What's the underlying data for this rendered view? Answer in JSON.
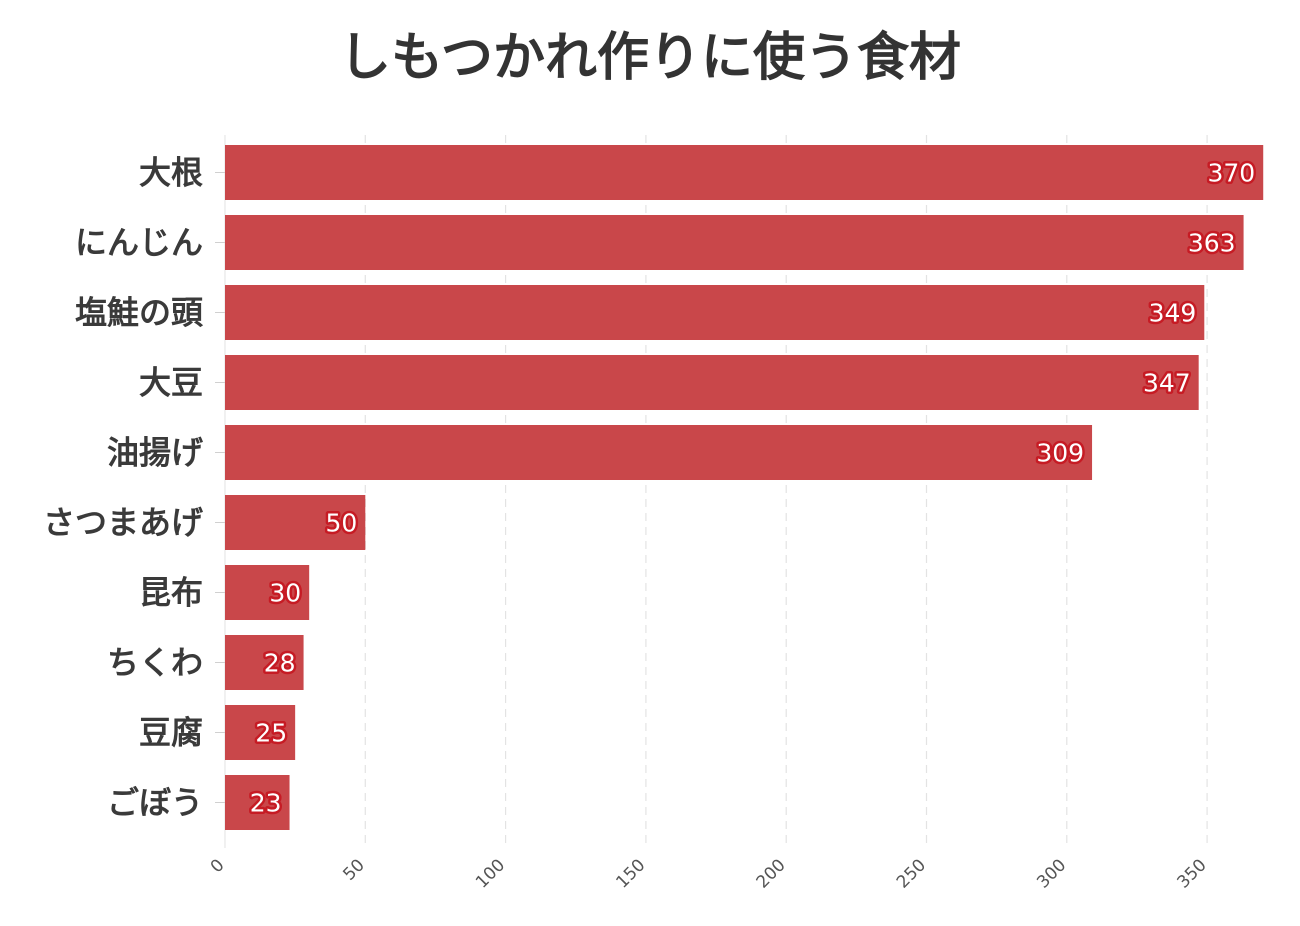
{
  "chart_data": {
    "type": "bar",
    "orientation": "horizontal",
    "title": "しもつかれ作りに使う食材",
    "xlabel": "",
    "ylabel": "",
    "categories": [
      "大根",
      "にんじん",
      "塩鮭の頭",
      "大豆",
      "油揚げ",
      "さつまあげ",
      "昆布",
      "ちくわ",
      "豆腐",
      "ごぼう"
    ],
    "values": [
      370,
      363,
      349,
      347,
      309,
      50,
      30,
      28,
      25,
      23
    ],
    "xlim": [
      0,
      370
    ],
    "x_ticks": [
      "0",
      "50",
      "100",
      "150",
      "200",
      "250",
      "300",
      "350"
    ],
    "grid": "vertical dashed",
    "bar_color": "#c9474a",
    "label_outline_color": "#c61b24",
    "data_labels": true
  }
}
